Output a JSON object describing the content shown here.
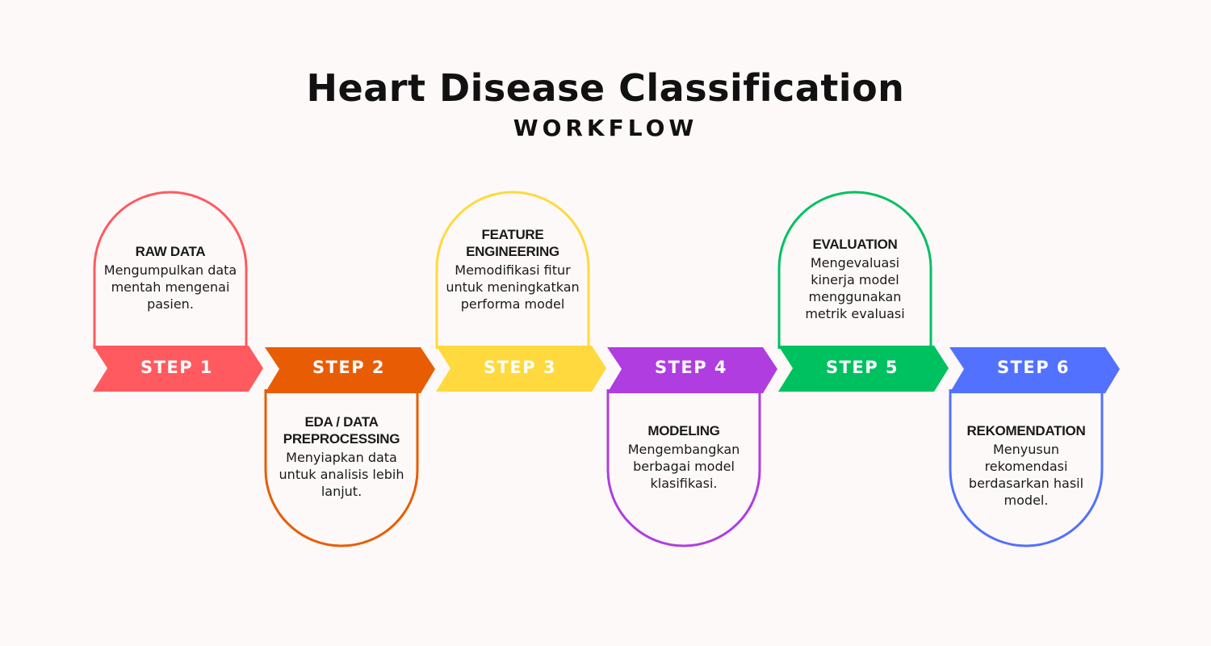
{
  "header": {
    "title": "Heart Disease Classification",
    "subtitle": "WORKFLOW"
  },
  "steps": [
    {
      "label": "STEP 1",
      "heading": "RAW DATA",
      "description": "Mengumpulkan data mentah mengenai pasien.",
      "color": "#ff5a5f"
    },
    {
      "label": "STEP 2",
      "heading": "EDA / DATA PREPROCESSING",
      "description": "Menyiapkan data untuk analisis lebih lanjut.",
      "color": "#e85d04"
    },
    {
      "label": "STEP 3",
      "heading": "FEATURE ENGINEERING",
      "description": "Memodifikasi fitur untuk meningkatkan performa model",
      "color": "#ffd93d"
    },
    {
      "label": "STEP 4",
      "heading": "MODELING",
      "description": "Mengembangkan berbagai model klasifikasi.",
      "color": "#b03de0"
    },
    {
      "label": "STEP 5",
      "heading": "EVALUATION",
      "description": "Mengevaluasi kinerja model menggunakan metrik evaluasi",
      "color": "#00c160"
    },
    {
      "label": "STEP 6",
      "heading": "REKOMENDATION",
      "description": "Menyusun rekomendasi berdasarkan hasil model.",
      "color": "#5271ff"
    }
  ]
}
